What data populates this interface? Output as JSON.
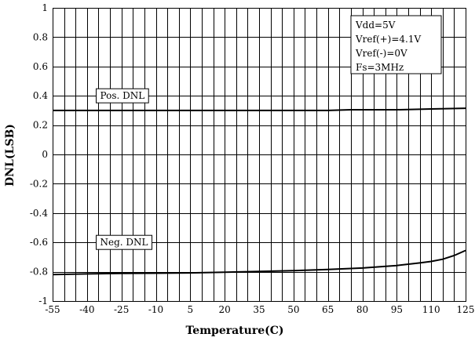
{
  "chart_data": {
    "type": "line",
    "title": "",
    "xlabel": "Temperature(C)",
    "ylabel": "DNL(LSB)",
    "xlim": [
      -55,
      125
    ],
    "ylim": [
      -1,
      1
    ],
    "x_ticks": [
      -55,
      -40,
      -25,
      -10,
      5,
      20,
      35,
      50,
      65,
      80,
      95,
      110,
      125
    ],
    "y_ticks": [
      -1,
      -0.8,
      -0.6,
      -0.4,
      -0.2,
      0,
      0.2,
      0.4,
      0.6,
      0.8,
      1
    ],
    "grid": true,
    "series": [
      {
        "name": "Pos. DNL",
        "x": [
          -55,
          -25,
          5,
          35,
          65,
          75,
          95,
          110,
          125
        ],
        "y": [
          0.3,
          0.3,
          0.3,
          0.3,
          0.3,
          0.305,
          0.305,
          0.31,
          0.315
        ]
      },
      {
        "name": "Neg. DNL",
        "x": [
          -55,
          -40,
          -25,
          -10,
          5,
          20,
          35,
          50,
          65,
          80,
          95,
          105,
          110,
          115,
          120,
          125
        ],
        "y": [
          -0.82,
          -0.815,
          -0.812,
          -0.81,
          -0.808,
          -0.803,
          -0.798,
          -0.793,
          -0.785,
          -0.775,
          -0.758,
          -0.74,
          -0.73,
          -0.715,
          -0.69,
          -0.655
        ]
      }
    ],
    "annotation": {
      "lines": [
        "Vdd=5V",
        "Vref(+)=4.1V",
        "Vref(-)=0V",
        "Fs=3MHz"
      ],
      "placement": "top-right"
    },
    "colors": {
      "series": "#000000",
      "grid": "#000000",
      "background": "#ffffff"
    }
  }
}
